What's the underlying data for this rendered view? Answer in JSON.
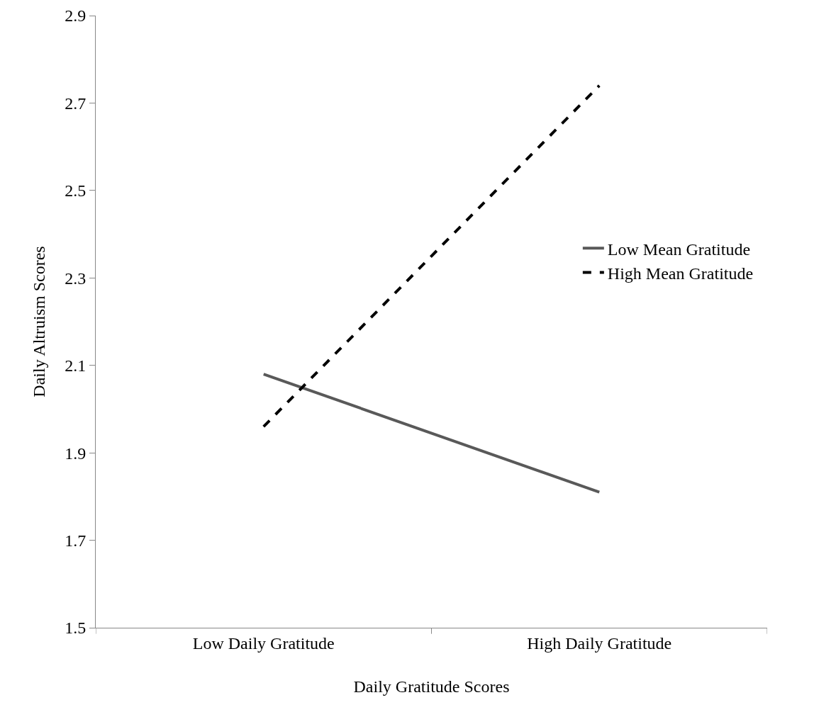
{
  "chart_data": {
    "type": "line",
    "xlabel": "Daily Gratitude Scores",
    "ylabel": "Daily Altruism Scores",
    "categories": [
      "Low Daily Gratitude",
      "High Daily Gratitude"
    ],
    "series": [
      {
        "name": "Low Mean Gratitude",
        "color": "#595959",
        "values": [
          2.08,
          1.81
        ],
        "line_style": "solid"
      },
      {
        "name": "High Mean Gratitude",
        "color": "#000000",
        "values": [
          1.96,
          2.74
        ],
        "line_style": "dashed"
      }
    ],
    "ylim": [
      1.5,
      2.9
    ],
    "yticks": [
      1.5,
      1.7,
      1.9,
      2.1,
      2.3,
      2.5,
      2.7,
      2.9
    ],
    "grid": false,
    "legend": "right",
    "marker": "none"
  }
}
